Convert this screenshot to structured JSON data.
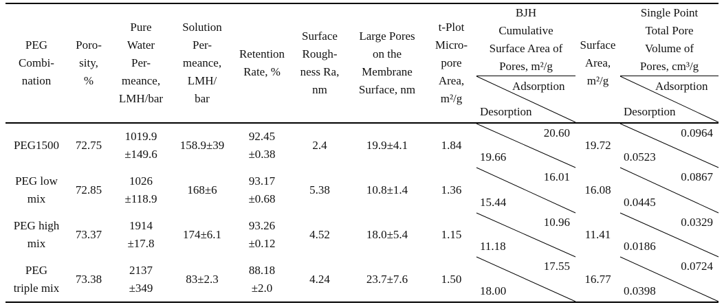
{
  "table": {
    "headers": {
      "peg": "PEG\nCombi-\nnation",
      "porosity": "Poro-\nsity,\n%",
      "pure_water": "Pure\nWater\nPer-\nmeance,\nLMH/bar",
      "solution": "Solution\nPer-\nmeance,\nLMH/\nbar",
      "retention": "Retention\nRate, %",
      "roughness": "Surface\nRough-\nness Ra,\nnm",
      "large_pores": "Large Pores\non the\nMembrane\nSurface, nm",
      "tplot": "t-Plot\nMicro-\npore\nArea,\nm²/g",
      "bjh": "BJH\nCumulative\nSurface Area of\nPores, m²/g",
      "surface_area": "Surface\nArea,\nm²/g",
      "single_point": "Single Point\nTotal Pore\nVolume of\nPores, cm³/g",
      "adsorption": "Adsorption",
      "desorption": "Desorption"
    },
    "rows": [
      {
        "peg": "PEG1500",
        "porosity": "72.75",
        "pure_water": "1019.9\n±149.6",
        "solution": "158.9±39",
        "retention": "92.45\n±0.38",
        "roughness": "2.4",
        "large_pores": "19.9±4.1",
        "tplot": "1.84",
        "bjh_ads": "20.60",
        "bjh_des": "19.66",
        "surface_area": "19.72",
        "sp_ads": "0.0964",
        "sp_des": "0.0523"
      },
      {
        "peg": "PEG low\nmix",
        "porosity": "72.85",
        "pure_water": "1026\n±118.9",
        "solution": "168±6",
        "retention": "93.17\n±0.68",
        "roughness": "5.38",
        "large_pores": "10.8±1.4",
        "tplot": "1.36",
        "bjh_ads": "16.01",
        "bjh_des": "15.44",
        "surface_area": "16.08",
        "sp_ads": "0.0867",
        "sp_des": "0.0445"
      },
      {
        "peg": "PEG high\nmix",
        "porosity": "73.37",
        "pure_water": "1914\n±17.8",
        "solution": "174±6.1",
        "retention": "93.26\n±0.12",
        "roughness": "4.52",
        "large_pores": "18.0±5.4",
        "tplot": "1.15",
        "bjh_ads": "10.96",
        "bjh_des": "11.18",
        "surface_area": "11.41",
        "sp_ads": "0.0329",
        "sp_des": "0.0186"
      },
      {
        "peg": "PEG\ntriple mix",
        "porosity": "73.38",
        "pure_water": "2137\n±349",
        "solution": "83±2.3",
        "retention": "88.18\n±2.0",
        "roughness": "4.24",
        "large_pores": "23.7±7.6",
        "tplot": "1.50",
        "bjh_ads": "17.55",
        "bjh_des": "18.00",
        "surface_area": "16.77",
        "sp_ads": "0.0724",
        "sp_des": "0.0398"
      }
    ]
  }
}
